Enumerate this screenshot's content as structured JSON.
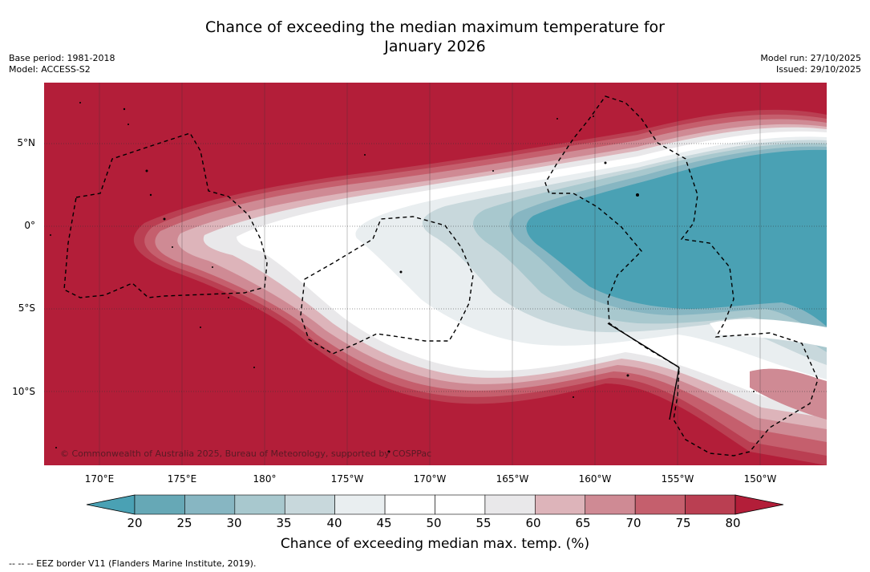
{
  "title_line1": "Chance of exceeding the median maximum temperature for",
  "title_line2": "January 2026",
  "base_period": "Base period: 1981-2018",
  "model": "Model: ACCESS-S2",
  "model_run": "Model run: 27/10/2025",
  "issued": "Issued: 29/10/2025",
  "copyright": "© Commonwealth of Australia 2025, Bureau of Meteorology, supported by COSPPac",
  "footnote": "--  --  -- EEZ border V11 (Flanders Marine Institute, 2019).",
  "lat_labels": [
    "5°N",
    "0°",
    "5°S",
    "10°S"
  ],
  "lon_labels": [
    "170°E",
    "175°E",
    "180°",
    "175°W",
    "170°W",
    "165°W",
    "160°W",
    "155°W",
    "150°W"
  ],
  "colorbar": {
    "title": "Chance of exceeding median max. temp. (%)",
    "ticks": [
      "20",
      "25",
      "30",
      "35",
      "40",
      "45",
      "50",
      "55",
      "60",
      "65",
      "70",
      "75",
      "80"
    ],
    "colors": [
      "#66a8b6",
      "#87b6c2",
      "#a8c8ce",
      "#c8d8dc",
      "#e9eef0",
      "#ffffff",
      "#ffffff",
      "#e9e8ea",
      "#ddb4ba",
      "#cf8a94",
      "#c55f6d",
      "#ba3f52"
    ],
    "under_color": "#4aa1b4",
    "over_color": "#b31e39"
  },
  "map_colors": {
    "high": "#b31e39",
    "p75": "#ba3f52",
    "p70": "#c55f6d",
    "p65": "#cf8a94",
    "p60": "#ddb4ba",
    "p55": "#e9e8ea",
    "p50": "#ffffff",
    "p40": "#e9eef0",
    "p35": "#c8d8dc",
    "p30": "#a8c8ce",
    "p25": "#87b6c2",
    "low": "#4aa1b4"
  }
}
